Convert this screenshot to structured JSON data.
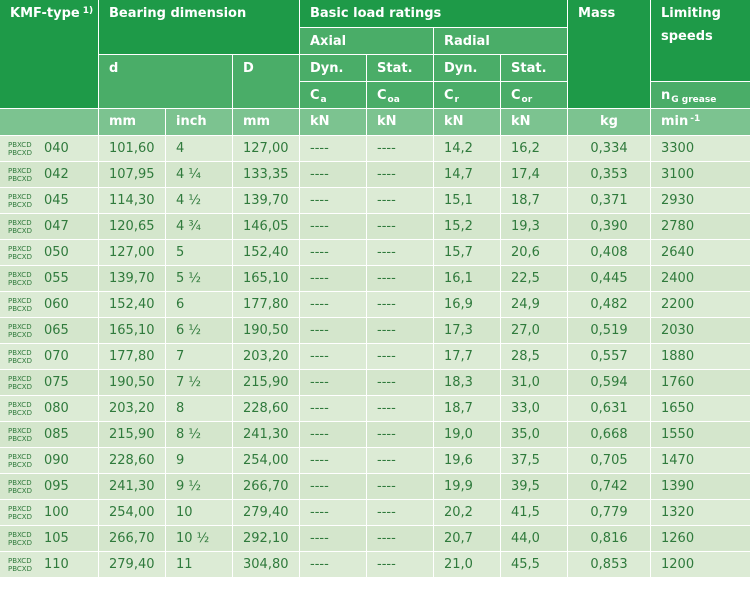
{
  "header": {
    "kmf_type": "KMF-type",
    "kmf_footnote": "1)",
    "bearing_dimension": "Bearing dimension",
    "basic_load_ratings": "Basic load ratings",
    "mass": "Mass",
    "limiting_speeds_l1": "Limiting",
    "limiting_speeds_l2": "speeds",
    "axial": "Axial",
    "radial": "Radial",
    "d": "d",
    "D": "D",
    "dyn": "Dyn.",
    "stat": "Stat.",
    "ca": "C",
    "ca_sub": "a",
    "coa": "C",
    "coa_sub": "oa",
    "cr": "C",
    "cr_sub": "r",
    "cor": "C",
    "cor_sub": "or",
    "ng": "n",
    "ng_sub": "G grease",
    "u_mm1": "mm",
    "u_inch": "inch",
    "u_mm2": "mm",
    "u_kn1": "kN",
    "u_kn2": "kN",
    "u_kn3": "kN",
    "u_kn4": "kN",
    "u_kg": "kg",
    "u_min": "min",
    "u_min_sup": "-1"
  },
  "series": [
    "PBXCD",
    "PBCXD"
  ],
  "rows": [
    {
      "size": "040",
      "d": "101,60",
      "inch": "4",
      "D": "127,00",
      "ca": "----",
      "coa": "----",
      "cr": "14,2",
      "cor": "16,2",
      "mass": "0,334",
      "speed": "3300"
    },
    {
      "size": "042",
      "d": "107,95",
      "inch": "4 ¼",
      "D": "133,35",
      "ca": "----",
      "coa": "----",
      "cr": "14,7",
      "cor": "17,4",
      "mass": "0,353",
      "speed": "3100"
    },
    {
      "size": "045",
      "d": "114,30",
      "inch": "4 ½",
      "D": "139,70",
      "ca": "----",
      "coa": "----",
      "cr": "15,1",
      "cor": "18,7",
      "mass": "0,371",
      "speed": "2930"
    },
    {
      "size": "047",
      "d": "120,65",
      "inch": "4 ¾",
      "D": "146,05",
      "ca": "----",
      "coa": "----",
      "cr": "15,2",
      "cor": "19,3",
      "mass": "0,390",
      "speed": "2780"
    },
    {
      "size": "050",
      "d": "127,00",
      "inch": "5",
      "D": "152,40",
      "ca": "----",
      "coa": "----",
      "cr": "15,7",
      "cor": "20,6",
      "mass": "0,408",
      "speed": "2640"
    },
    {
      "size": "055",
      "d": "139,70",
      "inch": "5 ½",
      "D": "165,10",
      "ca": "----",
      "coa": "----",
      "cr": "16,1",
      "cor": "22,5",
      "mass": "0,445",
      "speed": "2400"
    },
    {
      "size": "060",
      "d": "152,40",
      "inch": "6",
      "D": "177,80",
      "ca": "----",
      "coa": "----",
      "cr": "16,9",
      "cor": "24,9",
      "mass": "0,482",
      "speed": "2200"
    },
    {
      "size": "065",
      "d": "165,10",
      "inch": "6 ½",
      "D": "190,50",
      "ca": "----",
      "coa": "----",
      "cr": "17,3",
      "cor": "27,0",
      "mass": "0,519",
      "speed": "2030"
    },
    {
      "size": "070",
      "d": "177,80",
      "inch": "7",
      "D": "203,20",
      "ca": "----",
      "coa": "----",
      "cr": "17,7",
      "cor": "28,5",
      "mass": "0,557",
      "speed": "1880"
    },
    {
      "size": "075",
      "d": "190,50",
      "inch": "7 ½",
      "D": "215,90",
      "ca": "----",
      "coa": "----",
      "cr": "18,3",
      "cor": "31,0",
      "mass": "0,594",
      "speed": "1760"
    },
    {
      "size": "080",
      "d": "203,20",
      "inch": "8",
      "D": "228,60",
      "ca": "----",
      "coa": "----",
      "cr": "18,7",
      "cor": "33,0",
      "mass": "0,631",
      "speed": "1650"
    },
    {
      "size": "085",
      "d": "215,90",
      "inch": "8 ½",
      "D": "241,30",
      "ca": "----",
      "coa": "----",
      "cr": "19,0",
      "cor": "35,0",
      "mass": "0,668",
      "speed": "1550"
    },
    {
      "size": "090",
      "d": "228,60",
      "inch": "9",
      "D": "254,00",
      "ca": "----",
      "coa": "----",
      "cr": "19,6",
      "cor": "37,5",
      "mass": "0,705",
      "speed": "1470"
    },
    {
      "size": "095",
      "d": "241,30",
      "inch": "9 ½",
      "D": "266,70",
      "ca": "----",
      "coa": "----",
      "cr": "19,9",
      "cor": "39,5",
      "mass": "0,742",
      "speed": "1390"
    },
    {
      "size": "100",
      "d": "254,00",
      "inch": "10",
      "D": "279,40",
      "ca": "----",
      "coa": "----",
      "cr": "20,2",
      "cor": "41,5",
      "mass": "0,779",
      "speed": "1320"
    },
    {
      "size": "105",
      "d": "266,70",
      "inch": "10 ½",
      "D": "292,10",
      "ca": "----",
      "coa": "----",
      "cr": "20,7",
      "cor": "44,0",
      "mass": "0,816",
      "speed": "1260"
    },
    {
      "size": "110",
      "d": "279,40",
      "inch": "11",
      "D": "304,80",
      "ca": "----",
      "coa": "----",
      "cr": "21,0",
      "cor": "45,5",
      "mass": "0,853",
      "speed": "1200"
    }
  ]
}
